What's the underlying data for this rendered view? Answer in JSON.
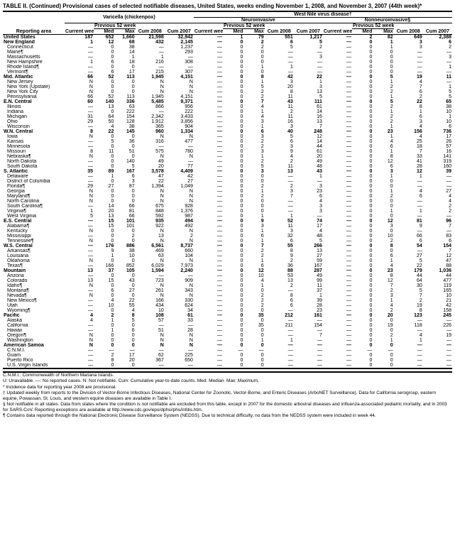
{
  "title": "TABLE II. (Continued) Provisional cases of selected notifiable diseases, United States, weeks ending November 1, 2008, and November 3, 2007 (44th week)*",
  "super_headers": {
    "left_blank": "",
    "varicella": "Varicella (chickenpox)",
    "wnv_group": "West Nile virus disease†"
  },
  "sub_super_headers": {
    "neuro": "Neuroinvasive",
    "nonneuro": "Nonneuroinvasive§"
  },
  "group_headers": {
    "previous": "Previous 52 weeks",
    "current": "Current week",
    "cum08": "Cum 2008",
    "cum07": "Cum 2007",
    "med": "Med",
    "max": "Max",
    "reporting": "Reporting area"
  },
  "rows": [
    {
      "region": true,
      "area": "United States",
      "v": [
        "187",
        "652",
        "1,660",
        "21,598",
        "32,942",
        "—",
        "1",
        "79",
        "551",
        "1,217",
        "—",
        "2",
        "82",
        "649",
        "2,388"
      ]
    },
    {
      "region": true,
      "area": "New England",
      "v": [
        "1",
        "12",
        "68",
        "432",
        "2,145",
        "—",
        "0",
        "2",
        "6",
        "5",
        "—",
        "0",
        "1",
        "3",
        "6"
      ]
    },
    {
      "area": "Connecticut",
      "v": [
        "—",
        "0",
        "38",
        "—",
        "1,237",
        "—",
        "0",
        "2",
        "5",
        "2",
        "—",
        "0",
        "1",
        "3",
        "2"
      ]
    },
    {
      "area": "Maine¶",
      "v": [
        "—",
        "0",
        "14",
        "—",
        "293",
        "—",
        "0",
        "0",
        "—",
        "—",
        "—",
        "0",
        "0",
        "—",
        "—"
      ]
    },
    {
      "area": "Massachusetts",
      "v": [
        "—",
        "0",
        "1",
        "1",
        "—",
        "—",
        "0",
        "0",
        "—",
        "3",
        "—",
        "0",
        "0",
        "—",
        "3"
      ]
    },
    {
      "area": "New Hampshire",
      "v": [
        "1",
        "6",
        "18",
        "216",
        "308",
        "—",
        "0",
        "0",
        "—",
        "—",
        "—",
        "0",
        "0",
        "—",
        "—"
      ]
    },
    {
      "area": "Rhode Island¶",
      "v": [
        "—",
        "0",
        "0",
        "—",
        "—",
        "—",
        "0",
        "1",
        "1",
        "—",
        "—",
        "0",
        "0",
        "—",
        "1"
      ]
    },
    {
      "area": "Vermont¶",
      "v": [
        "—",
        "6",
        "17",
        "215",
        "307",
        "—",
        "0",
        "0",
        "—",
        "—",
        "—",
        "0",
        "0",
        "—",
        "—"
      ]
    },
    {
      "region": true,
      "area": "Mid. Atlantic",
      "v": [
        "66",
        "52",
        "113",
        "1,945",
        "4,151",
        "—",
        "0",
        "8",
        "42",
        "22",
        "—",
        "0",
        "5",
        "19",
        "11"
      ]
    },
    {
      "area": "New Jersey",
      "v": [
        "N",
        "0",
        "0",
        "N",
        "N",
        "—",
        "0",
        "1",
        "3",
        "1",
        "—",
        "0",
        "1",
        "4",
        "—"
      ]
    },
    {
      "area": "New York (Upstate)",
      "v": [
        "N",
        "0",
        "0",
        "N",
        "N",
        "—",
        "0",
        "5",
        "20",
        "3",
        "—",
        "0",
        "2",
        "7",
        "1"
      ]
    },
    {
      "area": "New York City",
      "v": [
        "N",
        "0",
        "0",
        "N",
        "N",
        "—",
        "0",
        "2",
        "8",
        "13",
        "—",
        "0",
        "2",
        "6",
        "5"
      ]
    },
    {
      "area": "Pennsylvania",
      "v": [
        "66",
        "52",
        "113",
        "1,945",
        "4,151",
        "—",
        "0",
        "2",
        "11",
        "5",
        "—",
        "0",
        "1",
        "2",
        "5"
      ]
    },
    {
      "region": true,
      "area": "E.N. Central",
      "v": [
        "60",
        "140",
        "336",
        "5,485",
        "9,371",
        "—",
        "0",
        "7",
        "43",
        "111",
        "—",
        "0",
        "5",
        "22",
        "65"
      ]
    },
    {
      "area": "Illinois",
      "v": [
        "—",
        "13",
        "63",
        "866",
        "956",
        "—",
        "0",
        "4",
        "11",
        "61",
        "—",
        "0",
        "2",
        "8",
        "38"
      ]
    },
    {
      "area": "Indiana",
      "v": [
        "—",
        "0",
        "222",
        "—",
        "222",
        "—",
        "0",
        "1",
        "2",
        "14",
        "—",
        "0",
        "1",
        "1",
        "10"
      ]
    },
    {
      "area": "Michigan",
      "v": [
        "31",
        "64",
        "154",
        "2,342",
        "3,433",
        "—",
        "0",
        "4",
        "11",
        "16",
        "—",
        "0",
        "2",
        "6",
        "1"
      ]
    },
    {
      "area": "Ohio",
      "v": [
        "29",
        "50",
        "128",
        "1,912",
        "3,856",
        "—",
        "0",
        "3",
        "16",
        "13",
        "—",
        "0",
        "2",
        "3",
        "10"
      ]
    },
    {
      "area": "Wisconsin",
      "v": [
        "—",
        "4",
        "38",
        "365",
        "904",
        "—",
        "0",
        "1",
        "3",
        "7",
        "—",
        "0",
        "1",
        "4",
        "6"
      ]
    },
    {
      "region": true,
      "area": "W.N. Central",
      "v": [
        "8",
        "22",
        "145",
        "960",
        "1,334",
        "—",
        "0",
        "6",
        "40",
        "248",
        "—",
        "0",
        "23",
        "156",
        "736"
      ]
    },
    {
      "area": "Iowa",
      "v": [
        "N",
        "0",
        "0",
        "N",
        "N",
        "—",
        "0",
        "3",
        "5",
        "12",
        "—",
        "0",
        "1",
        "4",
        "17"
      ]
    },
    {
      "area": "Kansas",
      "v": [
        "—",
        "5",
        "36",
        "316",
        "477",
        "—",
        "0",
        "2",
        "6",
        "14",
        "—",
        "0",
        "4",
        "25",
        "26"
      ]
    },
    {
      "area": "Minnesota",
      "v": [
        "—",
        "0",
        "0",
        "—",
        "—",
        "—",
        "0",
        "2",
        "3",
        "44",
        "—",
        "0",
        "6",
        "18",
        "57"
      ]
    },
    {
      "area": "Missouri",
      "v": [
        "8",
        "11",
        "51",
        "575",
        "780",
        "—",
        "0",
        "3",
        "9",
        "61",
        "—",
        "0",
        "1",
        "7",
        "16"
      ]
    },
    {
      "area": "Nebraska¶",
      "v": [
        "N",
        "0",
        "0",
        "N",
        "N",
        "—",
        "0",
        "1",
        "4",
        "20",
        "—",
        "0",
        "8",
        "33",
        "141"
      ]
    },
    {
      "area": "North Dakota",
      "v": [
        "—",
        "0",
        "140",
        "49",
        "—",
        "—",
        "0",
        "2",
        "2",
        "49",
        "—",
        "0",
        "12",
        "41",
        "319"
      ]
    },
    {
      "area": "South Dakota",
      "v": [
        "—",
        "0",
        "5",
        "20",
        "77",
        "—",
        "0",
        "5",
        "11",
        "48",
        "—",
        "0",
        "6",
        "28",
        "160"
      ]
    },
    {
      "region": true,
      "area": "S. Atlantic",
      "v": [
        "35",
        "89",
        "167",
        "3,578",
        "4,409",
        "—",
        "0",
        "3",
        "13",
        "43",
        "—",
        "0",
        "3",
        "12",
        "39"
      ]
    },
    {
      "area": "Delaware",
      "v": [
        "—",
        "1",
        "6",
        "47",
        "42",
        "—",
        "0",
        "0",
        "—",
        "1",
        "—",
        "0",
        "1",
        "1",
        "—"
      ]
    },
    {
      "area": "District of Columbia",
      "v": [
        "—",
        "0",
        "3",
        "22",
        "27",
        "—",
        "0",
        "0",
        "—",
        "—",
        "—",
        "0",
        "0",
        "—",
        "—"
      ]
    },
    {
      "area": "Florida¶",
      "v": [
        "29",
        "27",
        "87",
        "1,394",
        "1,049",
        "—",
        "0",
        "2",
        "2",
        "3",
        "—",
        "0",
        "0",
        "—",
        "—"
      ]
    },
    {
      "area": "Georgia",
      "v": [
        "N",
        "0",
        "0",
        "N",
        "N",
        "—",
        "0",
        "1",
        "3",
        "23",
        "—",
        "0",
        "1",
        "4",
        "27"
      ]
    },
    {
      "area": "Maryland¶",
      "v": [
        "N",
        "0",
        "0",
        "N",
        "N",
        "—",
        "0",
        "2",
        "7",
        "6",
        "—",
        "0",
        "2",
        "6",
        "4"
      ]
    },
    {
      "area": "North Carolina",
      "v": [
        "N",
        "0",
        "0",
        "N",
        "N",
        "—",
        "0",
        "0",
        "—",
        "4",
        "—",
        "0",
        "0",
        "—",
        "4"
      ]
    },
    {
      "area": "South Carolina¶",
      "v": [
        "—",
        "14",
        "66",
        "675",
        "928",
        "—",
        "0",
        "0",
        "—",
        "3",
        "—",
        "0",
        "0",
        "—",
        "2"
      ]
    },
    {
      "area": "Virginia¶",
      "v": [
        "1",
        "20",
        "81",
        "848",
        "1,376",
        "—",
        "0",
        "0",
        "—",
        "3",
        "—",
        "0",
        "1",
        "1",
        "2"
      ]
    },
    {
      "area": "West Virginia",
      "v": [
        "5",
        "13",
        "66",
        "592",
        "987",
        "—",
        "0",
        "1",
        "1",
        "—",
        "—",
        "0",
        "0",
        "—",
        "—"
      ]
    },
    {
      "region": true,
      "area": "E.S. Central",
      "v": [
        "—",
        "15",
        "101",
        "935",
        "494",
        "—",
        "0",
        "9",
        "52",
        "74",
        "—",
        "0",
        "12",
        "81",
        "96"
      ]
    },
    {
      "area": "Alabama¶",
      "v": [
        "—",
        "15",
        "101",
        "922",
        "492",
        "—",
        "0",
        "3",
        "11",
        "17",
        "—",
        "0",
        "3",
        "9",
        "7"
      ]
    },
    {
      "area": "Kentucky",
      "v": [
        "N",
        "0",
        "0",
        "N",
        "N",
        "—",
        "0",
        "1",
        "3",
        "4",
        "—",
        "0",
        "0",
        "—",
        "—"
      ]
    },
    {
      "area": "Mississippi",
      "v": [
        "—",
        "0",
        "2",
        "13",
        "2",
        "—",
        "0",
        "6",
        "32",
        "48",
        "—",
        "0",
        "10",
        "66",
        "83"
      ]
    },
    {
      "area": "Tennessee¶",
      "v": [
        "N",
        "0",
        "0",
        "N",
        "N",
        "—",
        "0",
        "1",
        "6",
        "5",
        "—",
        "0",
        "2",
        "6",
        "6"
      ]
    },
    {
      "region": true,
      "area": "W.S. Central",
      "v": [
        "—",
        "176",
        "886",
        "6,561",
        "8,737",
        "—",
        "0",
        "7",
        "55",
        "266",
        "—",
        "0",
        "8",
        "54",
        "154"
      ]
    },
    {
      "area": "Arkansas¶",
      "v": [
        "—",
        "9",
        "38",
        "469",
        "660",
        "—",
        "0",
        "2",
        "8",
        "13",
        "—",
        "0",
        "0",
        "—",
        "7"
      ]
    },
    {
      "area": "Louisiana",
      "v": [
        "—",
        "1",
        "10",
        "63",
        "104",
        "—",
        "0",
        "2",
        "9",
        "27",
        "—",
        "0",
        "6",
        "27",
        "12"
      ]
    },
    {
      "area": "Oklahoma",
      "v": [
        "N",
        "0",
        "0",
        "N",
        "N",
        "—",
        "0",
        "1",
        "2",
        "59",
        "—",
        "0",
        "1",
        "5",
        "47"
      ]
    },
    {
      "area": "Texas¶",
      "v": [
        "—",
        "166",
        "852",
        "6,029",
        "7,973",
        "—",
        "0",
        "6",
        "36",
        "167",
        "—",
        "0",
        "4",
        "22",
        "88"
      ]
    },
    {
      "region": true,
      "area": "Mountain",
      "v": [
        "13",
        "37",
        "105",
        "1,594",
        "2,240",
        "—",
        "0",
        "12",
        "88",
        "287",
        "—",
        "0",
        "23",
        "179",
        "1,036"
      ]
    },
    {
      "area": "Arizona",
      "v": [
        "—",
        "0",
        "0",
        "—",
        "—",
        "—",
        "0",
        "10",
        "53",
        "49",
        "—",
        "0",
        "8",
        "44",
        "44"
      ]
    },
    {
      "area": "Colorado",
      "v": [
        "13",
        "15",
        "43",
        "723",
        "909",
        "—",
        "0",
        "4",
        "13",
        "99",
        "—",
        "0",
        "12",
        "64",
        "477"
      ]
    },
    {
      "area": "Idaho¶",
      "v": [
        "N",
        "0",
        "0",
        "N",
        "N",
        "—",
        "0",
        "1",
        "2",
        "11",
        "—",
        "0",
        "7",
        "30",
        "119"
      ]
    },
    {
      "area": "Montana¶",
      "v": [
        "—",
        "6",
        "27",
        "261",
        "343",
        "—",
        "0",
        "0",
        "—",
        "37",
        "—",
        "0",
        "2",
        "5",
        "165"
      ]
    },
    {
      "area": "Nevada¶",
      "v": [
        "N",
        "0",
        "0",
        "N",
        "N",
        "—",
        "0",
        "2",
        "8",
        "1",
        "—",
        "0",
        "3",
        "7",
        "10"
      ]
    },
    {
      "area": "New Mexico¶",
      "v": [
        "—",
        "4",
        "22",
        "166",
        "330",
        "—",
        "0",
        "2",
        "6",
        "39",
        "—",
        "0",
        "1",
        "2",
        "21"
      ]
    },
    {
      "area": "Utah",
      "v": [
        "—",
        "10",
        "55",
        "434",
        "624",
        "—",
        "0",
        "2",
        "6",
        "28",
        "—",
        "0",
        "4",
        "19",
        "42"
      ]
    },
    {
      "area": "Wyoming¶",
      "v": [
        "—",
        "0",
        "4",
        "10",
        "34",
        "—",
        "0",
        "0",
        "—",
        "23",
        "—",
        "0",
        "2",
        "8",
        "158"
      ]
    },
    {
      "region": true,
      "area": "Pacific",
      "v": [
        "4",
        "2",
        "8",
        "108",
        "61",
        "—",
        "0",
        "35",
        "212",
        "161",
        "—",
        "0",
        "20",
        "123",
        "245"
      ]
    },
    {
      "area": "Alaska",
      "v": [
        "4",
        "1",
        "5",
        "57",
        "33",
        "—",
        "0",
        "0",
        "—",
        "—",
        "—",
        "0",
        "0",
        "—",
        "—"
      ]
    },
    {
      "area": "California",
      "v": [
        "—",
        "0",
        "0",
        "—",
        "—",
        "—",
        "0",
        "35",
        "211",
        "154",
        "—",
        "0",
        "19",
        "118",
        "226"
      ]
    },
    {
      "area": "Hawaii",
      "v": [
        "—",
        "1",
        "6",
        "51",
        "28",
        "—",
        "0",
        "0",
        "—",
        "—",
        "—",
        "0",
        "0",
        "—",
        "—"
      ]
    },
    {
      "area": "Oregon¶",
      "v": [
        "N",
        "0",
        "0",
        "N",
        "N",
        "—",
        "0",
        "0",
        "—",
        "7",
        "—",
        "0",
        "2",
        "4",
        "19"
      ]
    },
    {
      "area": "Washington",
      "v": [
        "N",
        "0",
        "0",
        "N",
        "N",
        "—",
        "0",
        "1",
        "1",
        "—",
        "—",
        "0",
        "1",
        "1",
        "—"
      ]
    },
    {
      "region": true,
      "area": "American Samoa",
      "v": [
        "N",
        "0",
        "0",
        "N",
        "N",
        "—",
        "0",
        "0",
        "—",
        "—",
        "—",
        "0",
        "0",
        "—",
        "—"
      ]
    },
    {
      "area": "C.N.M.I.",
      "v": [
        "—",
        "—",
        "—",
        "—",
        "—",
        "—",
        "—",
        "—",
        "—",
        "—",
        "—",
        "—",
        "—",
        "—",
        "—"
      ]
    },
    {
      "area": "Guam",
      "v": [
        "—",
        "2",
        "17",
        "62",
        "225",
        "—",
        "0",
        "0",
        "—",
        "—",
        "—",
        "0",
        "0",
        "—",
        "—"
      ]
    },
    {
      "area": "Puerto Rico",
      "v": [
        "—",
        "8",
        "20",
        "367",
        "650",
        "—",
        "0",
        "0",
        "—",
        "—",
        "—",
        "0",
        "0",
        "—",
        "—"
      ]
    },
    {
      "area": "U.S. Virgin Islands",
      "v": [
        "—",
        "0",
        "0",
        "—",
        "—",
        "—",
        "0",
        "0",
        "—",
        "—",
        "—",
        "0",
        "0",
        "—",
        "—"
      ]
    }
  ],
  "footnotes": [
    "C.N.M.I.: Commonwealth of Northern Mariana Islands.",
    "U: Unavailable.   —: No reported cases.   N: Not notifiable.   Cum: Cumulative year-to-date counts.   Med: Median.   Max: Maximum.",
    "* Incidence data for reporting year 2008 are provisional.",
    "† Updated weekly from reports to the Division of Vector-Borne Infectious Diseases, National Center for Zoonotic, Vector-Borne, and Enteric Diseases (ArboNET Surveillance). Data for California serogroup, eastern equine, Powassan, St. Louis, and western equine diseases are available in Table I.",
    "§ Not notifiable in all states. Data from states where the condition is not notifiable are excluded from this table, except in 2007 for the domestic arboviral diseases and influenza-associated pediatric mortality, and in 2003 for SARS-CoV. Reporting exceptions are available at http://www.cdc.gov/epo/dphsi/phs/infdis.htm.",
    "¶ Contains data reported through the National Electronic Disease Surveillance System (NEDSS). Due to technical difficulty, no data from the NEDSS system were included in week 44."
  ]
}
